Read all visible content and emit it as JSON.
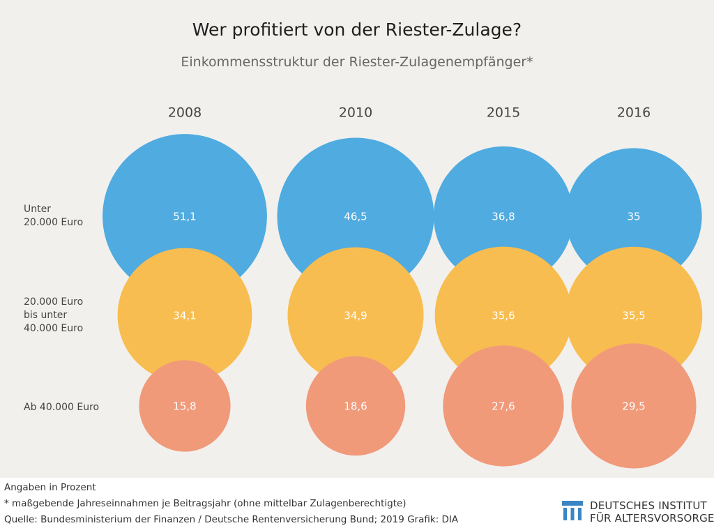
{
  "header": {
    "title": "Wer profitiert von der Riester-Zulage?",
    "subtitle": "Einkommensstruktur der Riester-Zulagenempfänger*"
  },
  "chart_data": {
    "type": "bubble",
    "title": "Wer profitiert von der Riester-Zulage?",
    "subtitle": "Einkommensstruktur der Riester-Zulagenempfänger*",
    "unit": "Prozent",
    "years": [
      "2008",
      "2010",
      "2015",
      "2016"
    ],
    "series": [
      {
        "name": "Unter 20.000 Euro",
        "label_lines": [
          "Unter",
          "20.000 Euro"
        ],
        "color": "#4fabe0",
        "values": [
          51.1,
          46.5,
          36.8,
          35
        ],
        "labels": [
          "51,1",
          "46,5",
          "36,8",
          "35"
        ]
      },
      {
        "name": "20.000 Euro bis unter 40.000 Euro",
        "label_lines": [
          "20.000 Euro",
          "bis unter",
          "40.000 Euro"
        ],
        "color": "#f8bd50",
        "values": [
          34.1,
          34.9,
          35.6,
          35.5
        ],
        "labels": [
          "34,1",
          "34,9",
          "35,6",
          "35,5"
        ]
      },
      {
        "name": "Ab 40.000 Euro",
        "label_lines": [
          "Ab 40.000 Euro"
        ],
        "color": "#f09a7a",
        "values": [
          15.8,
          18.6,
          27.6,
          29.5
        ],
        "labels": [
          "15,8",
          "18,6",
          "27,6",
          "29,5"
        ]
      }
    ]
  },
  "footer": {
    "note_unit": "Angaben in Prozent",
    "footnote": "* maßgebende Jahreseinnahmen je Beitragsjahr (ohne mittelbar Zulagenberechtigte)",
    "source": "Quelle: Bundesministerium der Finanzen / Deutsche Rentenversicherung Bund; 2019   Grafik: DIA",
    "logo_line1": "DEUTSCHES INSTITUT",
    "logo_line2": "FÜR ALTERSVORSORGE",
    "logo_color": "#3a86c4"
  }
}
